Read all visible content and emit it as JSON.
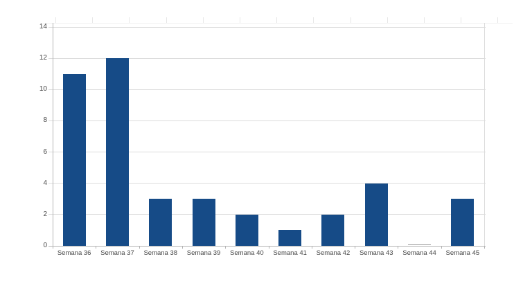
{
  "chart_data": {
    "type": "bar",
    "title": "",
    "xlabel": "",
    "ylabel": "",
    "categories": [
      "Semana 36",
      "Semana 37",
      "Semana 38",
      "Semana 39",
      "Semana 40",
      "Semana 41",
      "Semana 42",
      "Semana 43",
      "Semana 44",
      "Semana 45"
    ],
    "values": [
      11,
      12,
      3,
      3,
      2,
      1,
      2,
      4,
      0,
      3
    ],
    "ylim": [
      0,
      14
    ],
    "ytick_step": 2,
    "ytick_labels": [
      "0",
      "2",
      "4",
      "6",
      "8",
      "10",
      "12",
      "14"
    ],
    "grid": true,
    "legend": "none",
    "bar_color": "#164b87",
    "zero_bar_color": "#9a9a9a",
    "grid_color": "#dcdcdc",
    "axis_color": "#b3b3b3",
    "label_color": "#474747",
    "plot_background": "#ffffff",
    "sheet_artifact_tick_color": "#e7e7e7",
    "sheet_artifact_line_color": "#f0f0f0"
  }
}
